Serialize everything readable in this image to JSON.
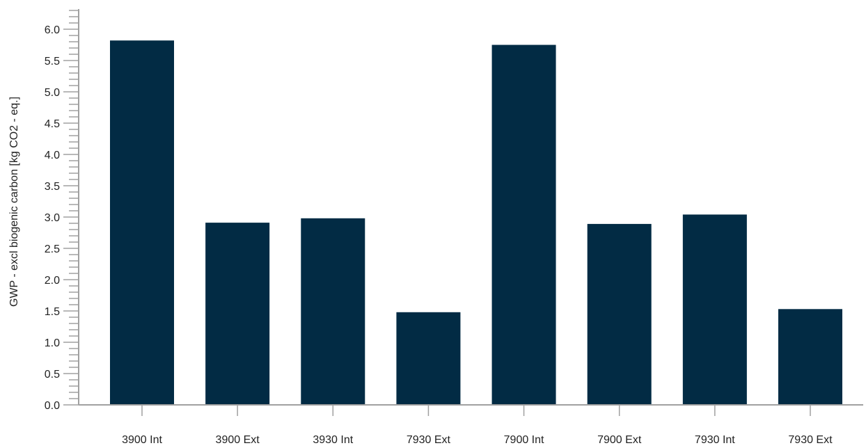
{
  "chart_data": {
    "type": "bar",
    "title": "",
    "xlabel": "",
    "ylabel": "GWP - excl biogenic carbon [kg CO2 - eq.]",
    "categories": [
      "3900 Int",
      "3900 Ext",
      "3930 Int",
      "7930 Ext",
      "7900 Int",
      "7900 Ext",
      "7930 Int",
      "7930 Ext"
    ],
    "values": [
      5.82,
      2.91,
      2.98,
      1.48,
      5.75,
      2.89,
      3.04,
      1.53
    ],
    "ylim": [
      0,
      6.3
    ],
    "yticks": [
      {
        "value": 0.0,
        "label": "0.0"
      },
      {
        "value": 0.5,
        "label": "0.5"
      },
      {
        "value": 1.0,
        "label": "1.0"
      },
      {
        "value": 1.5,
        "label": "1.5"
      },
      {
        "value": 2.0,
        "label": "2.0"
      },
      {
        "value": 2.5,
        "label": "2.5"
      },
      {
        "value": 3.0,
        "label": "3.0"
      },
      {
        "value": 3.5,
        "label": "3.5"
      },
      {
        "value": 4.0,
        "label": "4.0"
      },
      {
        "value": 4.5,
        "label": "4.5"
      },
      {
        "value": 5.0,
        "label": "5.0"
      },
      {
        "value": 5.5,
        "label": "5.5"
      },
      {
        "value": 6.0,
        "label": "6.0"
      }
    ],
    "grid": false,
    "legend": "none",
    "bar_color": "#022b44",
    "axis_color": "#a0a0a0"
  }
}
